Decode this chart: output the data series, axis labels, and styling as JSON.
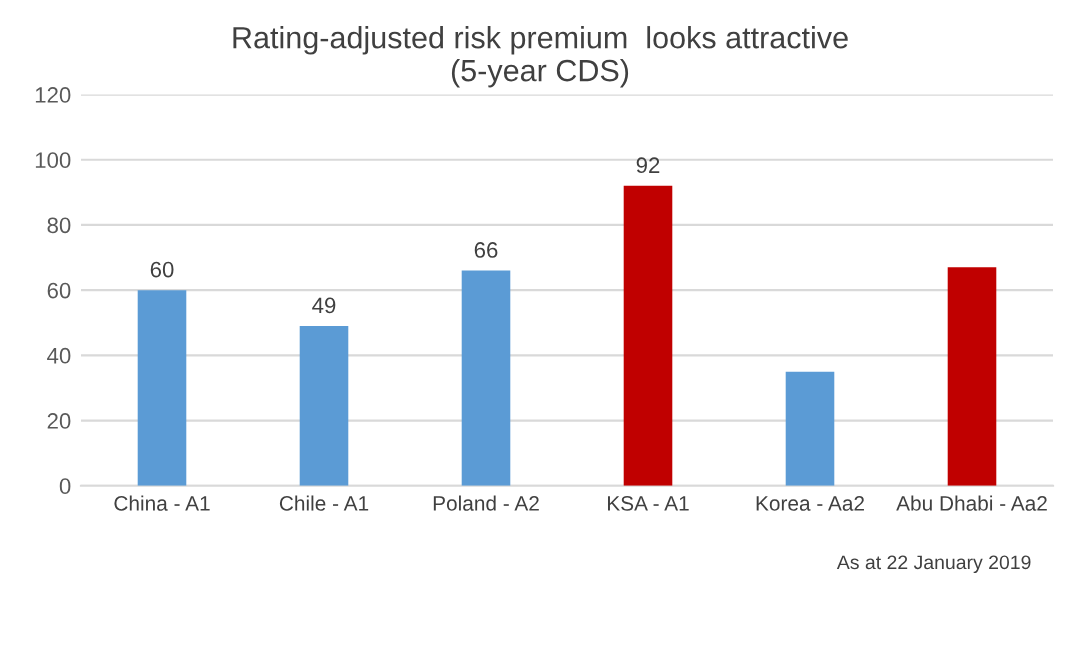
{
  "chart_data": {
    "type": "bar",
    "title": "Rating-adjusted risk premium  looks attractive\n(5-year CDS)",
    "categories": [
      "China - A1",
      "Chile - A1",
      "Poland - A2",
      "KSA - A1",
      "Korea - Aa2",
      "Abu Dhabi - Aa2"
    ],
    "values": [
      60,
      49,
      66,
      92,
      35,
      67
    ],
    "colors": [
      "#5b9bd5",
      "#5b9bd5",
      "#5b9bd5",
      "#c00000",
      "#5b9bd5",
      "#c00000"
    ],
    "value_labels": [
      "60",
      "49",
      "66",
      "92",
      null,
      null
    ],
    "ylim": [
      0,
      120
    ],
    "yticks": [
      0,
      20,
      40,
      60,
      80,
      100,
      120
    ],
    "grid": "y",
    "annotations": [
      "As at 22 January 2019"
    ]
  }
}
